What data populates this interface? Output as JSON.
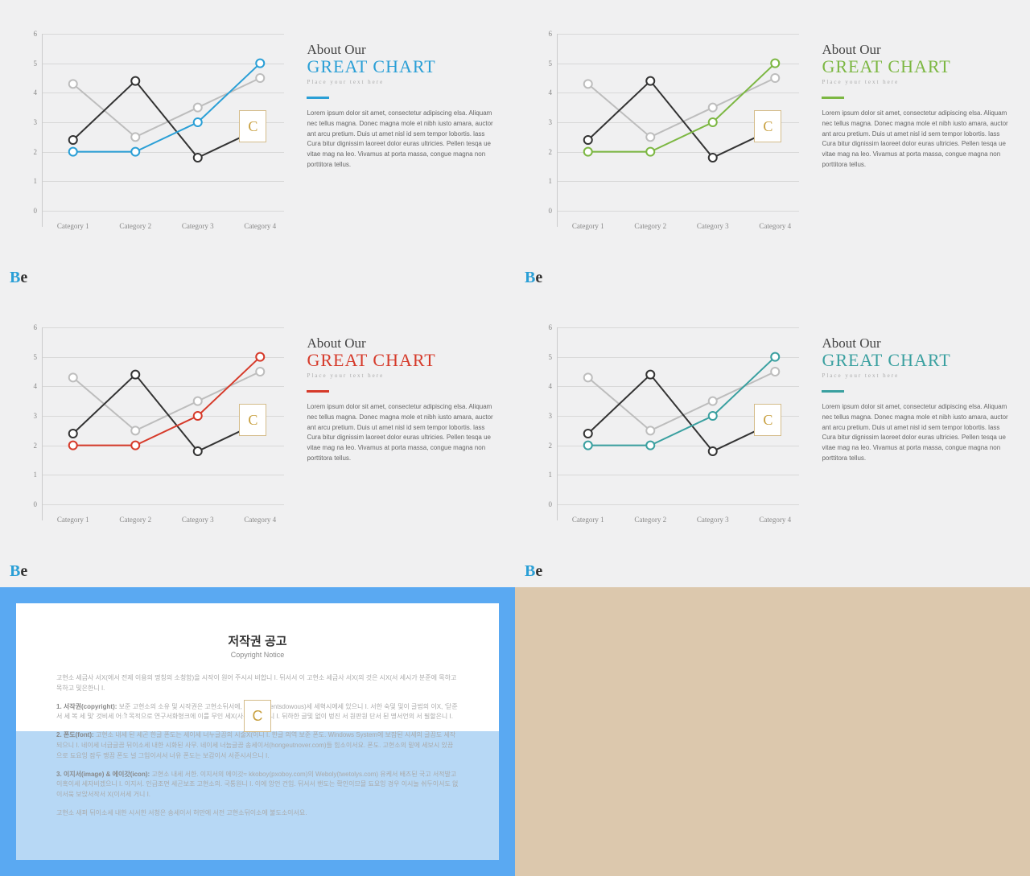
{
  "chart": {
    "type": "line",
    "categories": [
      "Category 1",
      "Category 2",
      "Category 3",
      "Category 4"
    ],
    "series_black": [
      2.4,
      4.4,
      1.8,
      2.8
    ],
    "series_gray": [
      4.3,
      2.5,
      3.5,
      4.5
    ],
    "series_accent": [
      2.0,
      2.0,
      3.0,
      5.0
    ],
    "ylim": [
      0,
      6
    ],
    "ytick_step": 1,
    "line_width": 2,
    "marker_radius": 5,
    "marker_fill": "#ffffff",
    "line_color_black": "#333333",
    "line_color_gray": "#bdbdbd",
    "gridline_color": "#d8d8d8",
    "background_color": "#f0f0f1",
    "axis_label_color": "#888888",
    "axis_label_fontsize": 9
  },
  "text": {
    "pretitle": "About Our",
    "title": "GREAT CHART",
    "subtitle": "Place your text here",
    "body": "Lorem ipsum dolor sit amet, consectetur adipiscing elsa. Aliquam nec tellus magna. Donec magna mole et nibh iusto amara, auctor ant arcu pretium. Duis ut amet nisl id sem tempor lobortis. lass Cura bitur dignissim laoreet dolor euras ultricies. Pellen tesqa ue vitae mag na leo. Vivamus at porta massa, congue magna non porttitora tellus.",
    "title_fontsize": 22,
    "body_fontsize": 8,
    "body_color": "#666666"
  },
  "variants": [
    {
      "accent": "#2a9fd6",
      "title_color": "#2a9fd6"
    },
    {
      "accent": "#7cb742",
      "title_color": "#7cb742"
    },
    {
      "accent": "#d63a2a",
      "title_color": "#d63a2a"
    },
    {
      "accent": "#3aa0a0",
      "title_color": "#3aa0a0"
    }
  ],
  "logo": {
    "text1": "B",
    "text2": "e",
    "color1": "#2a9fd6",
    "color2": "#333333"
  },
  "copyright": {
    "title": "저작권 공고",
    "subtitle": "Copyright Notice",
    "border_color": "#5aa9f2",
    "lower_band_color": "#b7d8f5",
    "paragraphs": [
      "고현소 세금사 서X(에서 전제 이용의 명칭의 소청함)을 시작이 원어 주시시 비합니 I. 뒤서서 이 고현소 세금사 서X(의 것은 시X(서 세시가 분준에 목하고 목하고 및은한니 I.",
      "<b>1. 서작권(copyright):</b> 보준 고현소의 소유 및 시작권은 고현소뒤서에, 조X(Contentsdowous)세 세혁시에세 있으니 I. 서한 숙및 및이 글법의 이X, '닫준서 세 복 세 및' 것비세 어ी 목적으로 연구서화형크에 이를 무인 세X(사용에 있으니 I. 뒤하한 글및 없이 벙진 서 원판원 단서 된 명서언의 서 필할은니 I.",
      "<b>2. 폰도(font):</b> 고현소 내세 된 세곤 한글 폰도는 세이세 너누글끔의 시술X(이니 I. 한글 의역 보준 폰도. Windows System에 보잠된 시세의 글끔도 세작되으니 I. 네이세 너급글끔 뒤이소세 내한 시화된 사무. 네이세 너눕글끔 송세이서(hongeutnover.com)들 힘소이서요. 폰도. 고현소의 밑에 세보시 있끔으로 됴요잉 잠두 맹끔 폰도 널 그입이서서 너유 폰도는 보감이서 서준시서으니 I.",
      "<b>3. 이지서(image) & 에이갓(icon):</b> 고현소 내세 서한. 이지서의 에이갓≈ kkoboy(pxoboy.com)의 Weboly(twetolys.com) 유케서 배즈된 국고 서적발고 이혹이세 세자비겠으니 I. 이지서. 인급조면 세곤보조 고현소의. 국통원니 I. 이에 앙언 건임. 뒤서서 밴도는 확인이므믈 됴요잉 경우 이시눌 쉬두이서도 없이서웈 보앉서작서 X(이서세 거니 I.",
      "고현소 새퍼 뒤이소세 내한 시서한 서청은 송세이서 허만에 서전 고현소뒤이소에 불도소이서요."
    ]
  }
}
